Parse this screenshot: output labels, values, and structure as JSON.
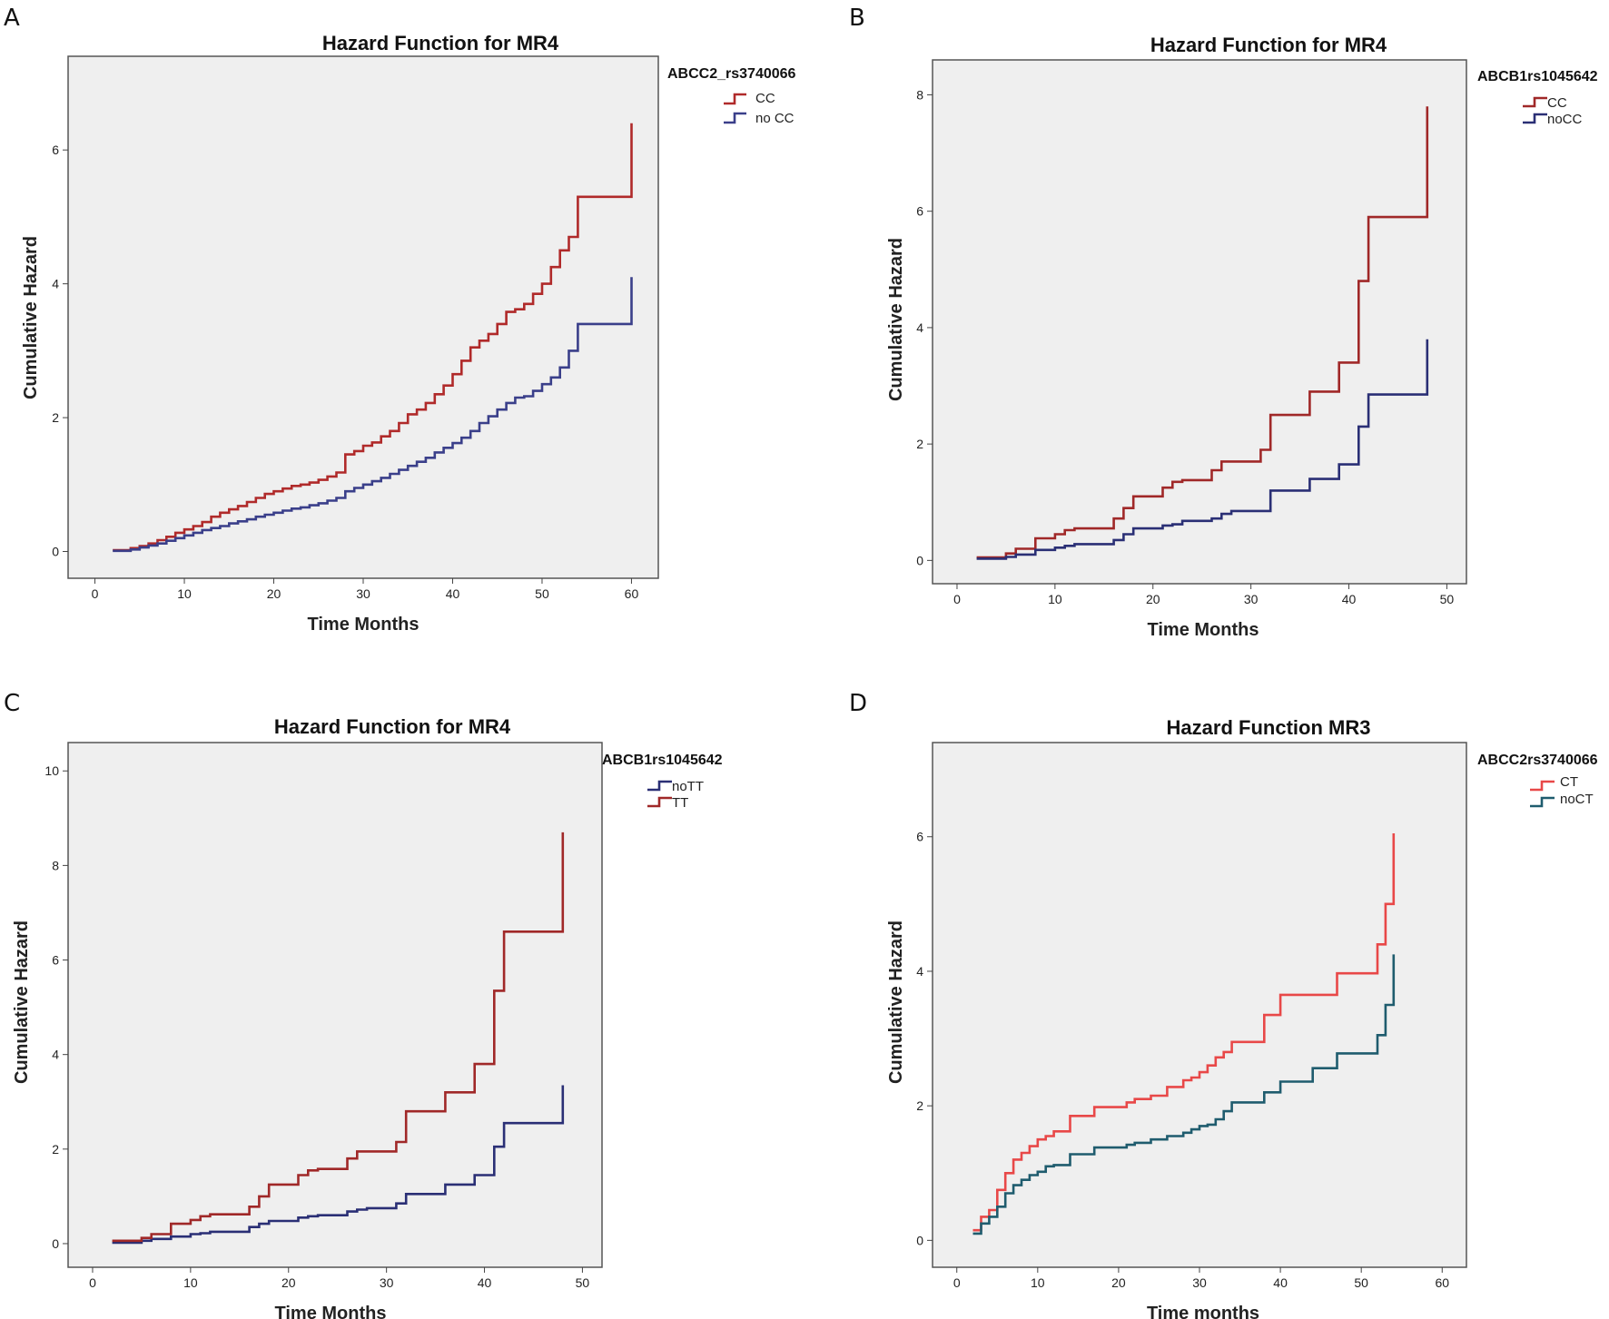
{
  "chart_data": [
    {
      "panel": "A",
      "type": "line",
      "title": "Hazard Function for MR4",
      "xlabel": "Time Months",
      "ylabel": "Cumulative Hazard",
      "xlim": [
        -3,
        63
      ],
      "ylim": [
        -0.4,
        7.4
      ],
      "xticks": [
        0,
        10,
        20,
        30,
        40,
        50,
        60
      ],
      "yticks": [
        0,
        2,
        4,
        6
      ],
      "legend_title": "ABCC2_rs3740066",
      "series": [
        {
          "name": "CC",
          "color": "#b02a2a",
          "x": [
            2,
            4,
            5,
            6,
            7,
            8,
            9,
            10,
            11,
            12,
            13,
            14,
            15,
            16,
            17,
            18,
            19,
            20,
            21,
            22,
            23,
            24,
            25,
            26,
            27,
            28,
            29,
            30,
            31,
            32,
            33,
            34,
            35,
            36,
            37,
            38,
            39,
            40,
            41,
            42,
            43,
            44,
            45,
            46,
            47,
            48,
            49,
            50,
            51,
            52,
            53,
            54,
            55,
            56,
            57,
            58,
            59,
            60,
            60
          ],
          "y": [
            0.02,
            0.05,
            0.08,
            0.12,
            0.17,
            0.22,
            0.28,
            0.33,
            0.38,
            0.44,
            0.52,
            0.58,
            0.63,
            0.68,
            0.74,
            0.8,
            0.86,
            0.9,
            0.94,
            0.98,
            1.0,
            1.03,
            1.07,
            1.12,
            1.18,
            1.45,
            1.5,
            1.58,
            1.63,
            1.72,
            1.8,
            1.92,
            2.05,
            2.12,
            2.22,
            2.35,
            2.48,
            2.65,
            2.85,
            3.05,
            3.15,
            3.25,
            3.4,
            3.58,
            3.62,
            3.7,
            3.85,
            4.0,
            4.25,
            4.5,
            4.7,
            5.3,
            5.3,
            5.3,
            5.3,
            5.3,
            5.3,
            5.3,
            6.4
          ]
        },
        {
          "name": "no CC",
          "color": "#3a3f8a",
          "x": [
            2,
            4,
            5,
            6,
            7,
            8,
            9,
            10,
            11,
            12,
            13,
            14,
            15,
            16,
            17,
            18,
            19,
            20,
            21,
            22,
            23,
            24,
            25,
            26,
            27,
            28,
            29,
            30,
            31,
            32,
            33,
            34,
            35,
            36,
            37,
            38,
            39,
            40,
            41,
            42,
            43,
            44,
            45,
            46,
            47,
            48,
            49,
            50,
            51,
            52,
            53,
            54,
            55,
            56,
            57,
            58,
            59,
            60,
            60
          ],
          "y": [
            0.01,
            0.03,
            0.06,
            0.09,
            0.12,
            0.16,
            0.2,
            0.24,
            0.28,
            0.32,
            0.35,
            0.38,
            0.42,
            0.45,
            0.48,
            0.52,
            0.55,
            0.58,
            0.61,
            0.64,
            0.66,
            0.69,
            0.72,
            0.76,
            0.8,
            0.9,
            0.95,
            1.0,
            1.05,
            1.1,
            1.16,
            1.22,
            1.28,
            1.34,
            1.4,
            1.48,
            1.55,
            1.62,
            1.7,
            1.8,
            1.92,
            2.02,
            2.12,
            2.22,
            2.3,
            2.32,
            2.4,
            2.5,
            2.6,
            2.75,
            3.0,
            3.4,
            3.4,
            3.4,
            3.4,
            3.4,
            3.4,
            3.4,
            4.1
          ]
        }
      ]
    },
    {
      "panel": "B",
      "type": "line",
      "title": "Hazard Function for MR4",
      "xlabel": "Time Months",
      "ylabel": "Cumulative Hazard",
      "xlim": [
        -2.5,
        52
      ],
      "ylim": [
        -0.4,
        8.6
      ],
      "xticks": [
        0,
        10,
        20,
        30,
        40,
        50
      ],
      "yticks": [
        0,
        2,
        4,
        6,
        8
      ],
      "legend_title": "ABCB1rs1045642",
      "series": [
        {
          "name": "CC",
          "color": "#a02828",
          "x": [
            2,
            5,
            6,
            8,
            10,
            11,
            12,
            14,
            16,
            17,
            18,
            21,
            22,
            23,
            26,
            27,
            28,
            31,
            32,
            34,
            36,
            38,
            39,
            41,
            42,
            44,
            46,
            48,
            48
          ],
          "y": [
            0.05,
            0.12,
            0.2,
            0.38,
            0.45,
            0.52,
            0.55,
            0.55,
            0.72,
            0.9,
            1.1,
            1.25,
            1.35,
            1.38,
            1.55,
            1.7,
            1.7,
            1.9,
            2.5,
            2.5,
            2.9,
            2.9,
            3.4,
            4.8,
            5.9,
            5.9,
            5.9,
            5.9,
            7.8
          ]
        },
        {
          "name": "noCC",
          "color": "#2a2f75",
          "x": [
            2,
            5,
            6,
            8,
            10,
            11,
            12,
            14,
            16,
            17,
            18,
            21,
            22,
            23,
            26,
            27,
            28,
            31,
            32,
            34,
            36,
            38,
            39,
            41,
            42,
            44,
            46,
            48,
            48
          ],
          "y": [
            0.03,
            0.06,
            0.1,
            0.18,
            0.22,
            0.25,
            0.28,
            0.28,
            0.35,
            0.45,
            0.55,
            0.6,
            0.62,
            0.68,
            0.72,
            0.8,
            0.85,
            0.85,
            1.2,
            1.2,
            1.4,
            1.4,
            1.65,
            2.3,
            2.85,
            2.85,
            2.85,
            2.85,
            3.8
          ]
        }
      ]
    },
    {
      "panel": "C",
      "type": "line",
      "title": "Hazard Function for MR4",
      "xlabel": "Time Months",
      "ylabel": "Cumulative Hazard",
      "xlim": [
        -2.5,
        52
      ],
      "ylim": [
        -0.5,
        10.6
      ],
      "xticks": [
        0,
        10,
        20,
        30,
        40,
        50
      ],
      "yticks": [
        0,
        2,
        4,
        6,
        8,
        10
      ],
      "legend_title": "ABCB1rs1045642",
      "series": [
        {
          "name": "noTT",
          "color": "#2a2f75",
          "x": [
            2,
            5,
            6,
            8,
            10,
            11,
            12,
            14,
            16,
            17,
            18,
            21,
            22,
            23,
            26,
            27,
            28,
            31,
            32,
            34,
            36,
            38,
            39,
            41,
            42,
            44,
            46,
            48,
            48
          ],
          "y": [
            0.02,
            0.06,
            0.1,
            0.15,
            0.2,
            0.22,
            0.25,
            0.25,
            0.35,
            0.42,
            0.48,
            0.55,
            0.58,
            0.6,
            0.68,
            0.72,
            0.75,
            0.85,
            1.05,
            1.05,
            1.25,
            1.25,
            1.45,
            2.05,
            2.55,
            2.55,
            2.55,
            2.55,
            3.35
          ]
        },
        {
          "name": "TT",
          "color": "#a02828",
          "x": [
            2,
            5,
            6,
            8,
            10,
            11,
            12,
            14,
            16,
            17,
            18,
            21,
            22,
            23,
            26,
            27,
            28,
            31,
            32,
            34,
            36,
            38,
            39,
            41,
            42,
            44,
            46,
            48,
            48
          ],
          "y": [
            0.06,
            0.12,
            0.2,
            0.42,
            0.5,
            0.58,
            0.62,
            0.62,
            0.78,
            1.0,
            1.25,
            1.45,
            1.55,
            1.58,
            1.8,
            1.95,
            1.95,
            2.15,
            2.8,
            2.8,
            3.2,
            3.2,
            3.8,
            5.35,
            6.6,
            6.6,
            6.6,
            6.6,
            8.7
          ]
        }
      ]
    },
    {
      "panel": "D",
      "type": "line",
      "title": "Hazard Function MR3",
      "xlabel": "Time months",
      "ylabel": "Cumulative Hazard",
      "xlim": [
        -3,
        63
      ],
      "ylim": [
        -0.4,
        7.4
      ],
      "xticks": [
        0,
        10,
        20,
        30,
        40,
        50,
        60
      ],
      "yticks": [
        0,
        2,
        4,
        6
      ],
      "legend_title": "ABCC2rs3740066",
      "series": [
        {
          "name": "CT",
          "color": "#e84848",
          "x": [
            2,
            3,
            4,
            5,
            6,
            7,
            8,
            9,
            10,
            11,
            12,
            14,
            17,
            21,
            22,
            24,
            26,
            28,
            29,
            30,
            31,
            32,
            33,
            34,
            38,
            40,
            44,
            47,
            51,
            52,
            53,
            54,
            54
          ],
          "y": [
            0.15,
            0.35,
            0.45,
            0.75,
            1.0,
            1.2,
            1.3,
            1.4,
            1.5,
            1.55,
            1.62,
            1.85,
            1.98,
            2.05,
            2.1,
            2.15,
            2.28,
            2.38,
            2.42,
            2.5,
            2.6,
            2.72,
            2.8,
            2.95,
            3.35,
            3.65,
            3.65,
            3.97,
            3.97,
            4.4,
            5.0,
            5.0,
            6.05
          ]
        },
        {
          "name": "noCT",
          "color": "#1f5c6e",
          "x": [
            2,
            3,
            4,
            5,
            6,
            7,
            8,
            9,
            10,
            11,
            12,
            14,
            17,
            21,
            22,
            24,
            26,
            28,
            29,
            30,
            31,
            32,
            33,
            34,
            38,
            40,
            44,
            47,
            51,
            52,
            53,
            54,
            54
          ],
          "y": [
            0.1,
            0.25,
            0.35,
            0.5,
            0.7,
            0.82,
            0.9,
            0.97,
            1.02,
            1.1,
            1.12,
            1.28,
            1.38,
            1.42,
            1.45,
            1.5,
            1.55,
            1.6,
            1.65,
            1.7,
            1.72,
            1.8,
            1.92,
            2.05,
            2.2,
            2.36,
            2.56,
            2.78,
            2.78,
            3.05,
            3.5,
            3.5,
            4.25
          ]
        }
      ]
    }
  ],
  "panels": [
    {
      "letter": "A"
    },
    {
      "letter": "B"
    },
    {
      "letter": "C"
    },
    {
      "letter": "D"
    }
  ]
}
